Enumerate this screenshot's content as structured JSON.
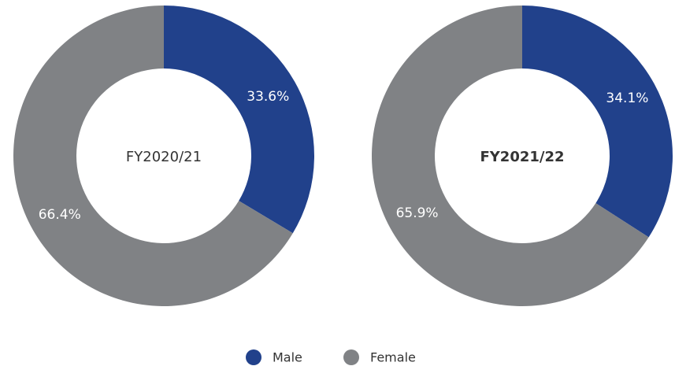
{
  "chart_data": [
    {
      "type": "donut",
      "title": "FY2020/21",
      "title_bold": false,
      "categories": [
        "Male",
        "Female"
      ],
      "values": [
        33.6,
        66.4
      ],
      "value_labels": [
        "33.6%",
        "66.4%"
      ],
      "colors": [
        "#21418b",
        "#808285"
      ]
    },
    {
      "type": "donut",
      "title": "FY2021/22",
      "title_bold": true,
      "categories": [
        "Male",
        "Female"
      ],
      "values": [
        34.1,
        65.9
      ],
      "value_labels": [
        "34.1%",
        "65.9%"
      ],
      "colors": [
        "#21418b",
        "#808285"
      ]
    }
  ]
}
